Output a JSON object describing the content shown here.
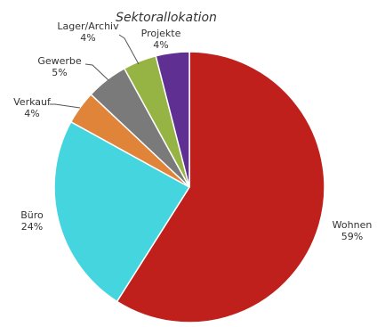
{
  "chart_data": {
    "type": "pie",
    "title": "Sektorallokation",
    "start_angle_deg": 0,
    "direction": "clockwise",
    "slices": [
      {
        "label": "Wohnen",
        "pct_label": "59%",
        "value": 59,
        "color": "#c0201c"
      },
      {
        "label": "Büro",
        "pct_label": "24%",
        "value": 24,
        "color": "#45d5de"
      },
      {
        "label": "Verkauf",
        "pct_label": "4%",
        "value": 4,
        "color": "#e0843a"
      },
      {
        "label": "Gewerbe",
        "pct_label": "5%",
        "value": 5,
        "color": "#7a7a7a"
      },
      {
        "label": "Lager/Archiv",
        "pct_label": "4%",
        "value": 4,
        "color": "#96b444"
      },
      {
        "label": "Projekte",
        "pct_label": "4%",
        "value": 4,
        "color": "#5f2f92"
      }
    ]
  }
}
